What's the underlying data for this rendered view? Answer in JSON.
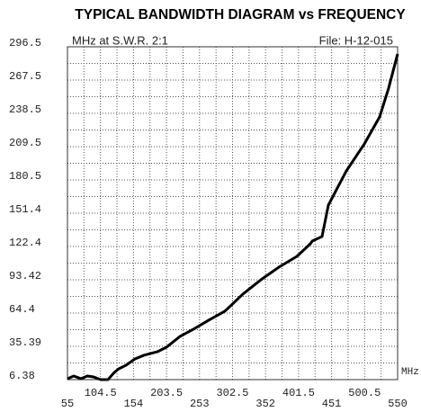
{
  "chart_data": {
    "type": "line",
    "title": "TYPICAL BANDWIDTH DIAGRAM vs FREQUENCY",
    "subtitle": "MHz at S.W.R.  2:1",
    "annotation": "File:  H-12-015",
    "x_label": "MHz",
    "x": [
      55,
      64.4,
      75.2,
      84.7,
      94.1,
      104.9,
      115.7,
      125.1,
      131.9,
      142.7,
      156.2,
      169.6,
      189.9,
      203.4,
      223.6,
      243.8,
      266.8,
      291.0,
      318.0,
      345.0,
      372.0,
      399.0,
      419.2,
      421.9,
      436.7,
      446.2,
      473.1,
      500.1,
      523.0,
      536.5,
      550
    ],
    "series": [
      {
        "name": "S.W.R. 2:1",
        "color": "#000000",
        "values": [
          7.2,
          9.5,
          7.2,
          9.5,
          8.7,
          6.4,
          6.4,
          12.6,
          15.8,
          18.9,
          24.4,
          27.6,
          30.7,
          34.6,
          44.0,
          50.3,
          58.2,
          66.0,
          80.9,
          93.4,
          104.4,
          113.8,
          124.8,
          127.1,
          131.1,
          158.5,
          188.3,
          211.8,
          235.3,
          260.4,
          290.2
        ]
      }
    ],
    "xlim": [
      55,
      550
    ],
    "xticks": [
      55,
      104.5,
      154,
      203.5,
      253,
      302.5,
      352,
      401.5,
      451,
      500.5,
      550
    ],
    "ylim": [
      6.38,
      296.5
    ],
    "yticks": [
      6.38,
      35.39,
      64.4,
      93.42,
      122.4,
      151.4,
      180.5,
      209.5,
      238.5,
      267.5,
      296.5
    ],
    "grid": true,
    "minor_grid": true
  }
}
